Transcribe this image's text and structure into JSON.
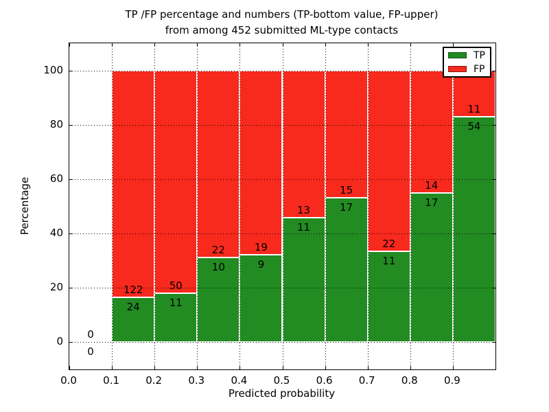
{
  "figure": {
    "title_line1": "TP /FP percentage and numbers (TP-bottom value, FP-upper)",
    "title_line2": "from among 452 submitted ML-type contacts",
    "xlabel": "Predicted probability",
    "ylabel": "Percentage"
  },
  "legend": {
    "items": [
      {
        "label": "TP",
        "color": "#228B22"
      },
      {
        "label": "FP",
        "color": "#F8291D"
      }
    ]
  },
  "chart_data": {
    "type": "bar",
    "stacked": true,
    "normalized": "each bin scaled to 100%, counts shown as labels (TP bottom, FP upper)",
    "title": "TP /FP percentage and numbers (TP-bottom value, FP-upper) from among 452 submitted ML-type contacts",
    "xlabel": "Predicted probability",
    "ylabel": "Percentage",
    "total_contacts": 452,
    "categories": [
      "0.0-0.1",
      "0.1-0.2",
      "0.2-0.3",
      "0.3-0.4",
      "0.4-0.5",
      "0.5-0.6",
      "0.6-0.7",
      "0.7-0.8",
      "0.8-0.9",
      "0.9-1.0"
    ],
    "bin_starts": [
      0.0,
      0.1,
      0.2,
      0.3,
      0.4,
      0.5,
      0.6,
      0.7,
      0.8,
      0.9
    ],
    "bin_width": 0.1,
    "series": [
      {
        "name": "TP",
        "counts": [
          0,
          24,
          11,
          10,
          9,
          11,
          17,
          11,
          17,
          54
        ],
        "color": "#228B22"
      },
      {
        "name": "FP",
        "counts": [
          0,
          122,
          50,
          22,
          19,
          13,
          15,
          22,
          14,
          11
        ],
        "color": "#F8291D"
      }
    ],
    "tp_percent_of_bin": [
      0,
      16.4,
      18.0,
      31.3,
      32.1,
      45.8,
      53.1,
      33.3,
      54.8,
      83.1
    ],
    "xlim": [
      0.0,
      1.0
    ],
    "ylim": [
      -10,
      110
    ],
    "xtick_values": [
      0.0,
      0.1,
      0.2,
      0.3,
      0.4,
      0.5,
      0.6,
      0.7,
      0.8,
      0.9
    ],
    "xtick_labels": [
      "0.0",
      "0.1",
      "0.2",
      "0.3",
      "0.4",
      "0.5",
      "0.6",
      "0.7",
      "0.8",
      "0.9"
    ],
    "ytick_values": [
      0,
      20,
      40,
      60,
      80,
      100
    ],
    "ytick_labels": [
      "0",
      "20",
      "40",
      "60",
      "80",
      "100"
    ],
    "grid": "dotted black, both axes",
    "legend_position": "upper right"
  }
}
